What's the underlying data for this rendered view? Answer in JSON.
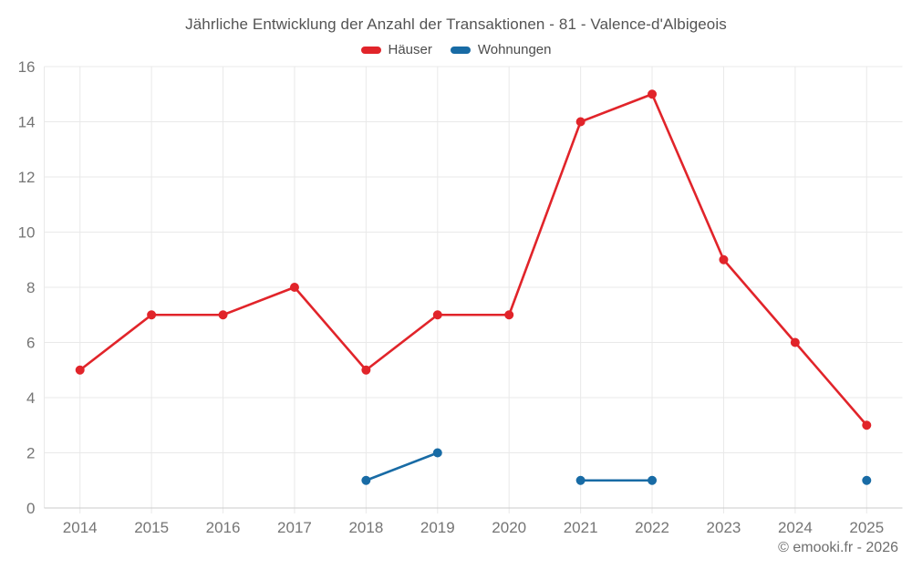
{
  "copyright": "© emooki.fr - 2026",
  "chart_data": {
    "type": "line",
    "title": "Jährliche Entwicklung der Anzahl der Transaktionen - 81 - Valence-d'Albigeois",
    "categories": [
      "2014",
      "2015",
      "2016",
      "2017",
      "2018",
      "2019",
      "2020",
      "2021",
      "2022",
      "2023",
      "2024",
      "2025"
    ],
    "series": [
      {
        "name": "Häuser",
        "color": "#e1242a",
        "values": [
          5,
          7,
          7,
          8,
          5,
          7,
          7,
          14,
          15,
          9,
          6,
          3
        ]
      },
      {
        "name": "Wohnungen",
        "color": "#186ba5",
        "values": [
          null,
          null,
          null,
          null,
          1,
          2,
          null,
          1,
          1,
          null,
          null,
          1
        ]
      }
    ],
    "xlabel": "",
    "ylabel": "",
    "ylim": [
      0,
      16
    ],
    "yticks": [
      0,
      2,
      4,
      6,
      8,
      10,
      12,
      14,
      16
    ],
    "grid": true,
    "legend_position": "top",
    "axis_label_color": "#757575",
    "gridline_color": "#e9e9e9",
    "axis_line_color": "#cbcbcb"
  }
}
